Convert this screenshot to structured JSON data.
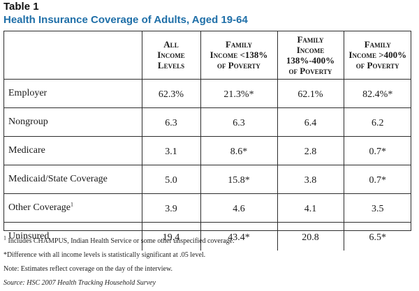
{
  "table_label": "Table 1",
  "title": "Health Insurance Coverage of Adults, Aged 19-64",
  "columns": [
    {
      "lines": [
        "All",
        "Income",
        "Levels"
      ]
    },
    {
      "lines": [
        "Family",
        "Income <138%",
        "of Poverty"
      ]
    },
    {
      "lines": [
        "Family",
        "Income",
        "138%-400%",
        "of Poverty"
      ]
    },
    {
      "lines": [
        "Family",
        "Income >400%",
        "of Poverty"
      ]
    }
  ],
  "rows": [
    {
      "label": "Employer",
      "sup": "",
      "values": [
        "62.3%",
        "21.3%*",
        "62.1%",
        "82.4%*"
      ]
    },
    {
      "label": "Nongroup",
      "sup": "",
      "values": [
        "6.3",
        "6.3",
        "6.4",
        "6.2"
      ]
    },
    {
      "label": "Medicare",
      "sup": "",
      "values": [
        "3.1",
        "8.6*",
        "2.8",
        "0.7*"
      ]
    },
    {
      "label": "Medicaid/State Coverage",
      "sup": "",
      "values": [
        "5.0",
        "15.8*",
        "3.8",
        "0.7*"
      ]
    },
    {
      "label": "Other Coverage",
      "sup": "1",
      "values": [
        "3.9",
        "4.6",
        "4.1",
        "3.5"
      ]
    },
    {
      "label": "Uninsured",
      "sup": "",
      "values": [
        "19.4",
        "43.4*",
        "20.8",
        "6.5*"
      ]
    }
  ],
  "notes": {
    "footnote_mark": "1",
    "footnote_1": " Includes CHAMPUS, Indian Health Service or some other unspecified coverage.",
    "significance": "*Difference with all income levels is statistically significant at .05 level.",
    "note": "Note: Estimates reflect coverage on the day of the interview.",
    "source": "Source: HSC 2007 Health Tracking Household Survey"
  },
  "colors": {
    "title": "#1f6fa8",
    "rule": "#2d2d2d"
  }
}
